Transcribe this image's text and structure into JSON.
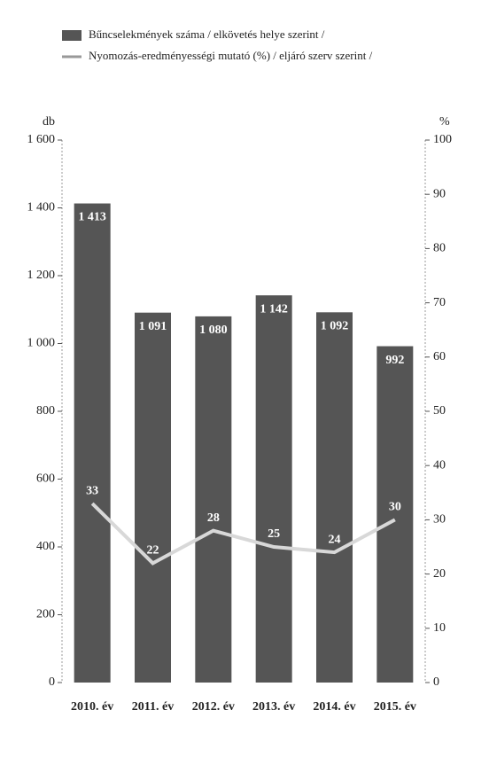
{
  "chart_data": {
    "type": "bar",
    "categories": [
      "2010. év",
      "2011. év",
      "2012. év",
      "2013. év",
      "2014. év",
      "2015. év"
    ],
    "series": [
      {
        "name": "Bűncselekmények száma / elkövetés helye szerint /",
        "color": "#555555",
        "values": [
          1413,
          1091,
          1080,
          1142,
          1092,
          992
        ],
        "value_labels": [
          "1 413",
          "1 091",
          "1 080",
          "1 142",
          "1 092",
          "992"
        ]
      },
      {
        "name": "Nyomozás-eredményességi mutató (%) / eljáró szerv szerint /",
        "color": "#d8d8d8",
        "type": "line",
        "axis": "y2",
        "values": [
          33,
          22,
          28,
          25,
          24,
          30
        ]
      }
    ],
    "y_label": "db",
    "y2_label": "%",
    "ylim": [
      0,
      1600
    ],
    "yticks": [
      0,
      200,
      400,
      600,
      800,
      {
        "value": 1000,
        "label": "1 000"
      },
      {
        "value": 1200,
        "label": "1 200"
      },
      {
        "value": 1400,
        "label": "1 400"
      },
      {
        "value": 1600,
        "label": "1 600"
      }
    ],
    "y2lim": [
      0,
      100
    ],
    "y2ticks": [
      0,
      10,
      20,
      30,
      40,
      50,
      60,
      70,
      80,
      90,
      100
    ],
    "grid": false
  }
}
